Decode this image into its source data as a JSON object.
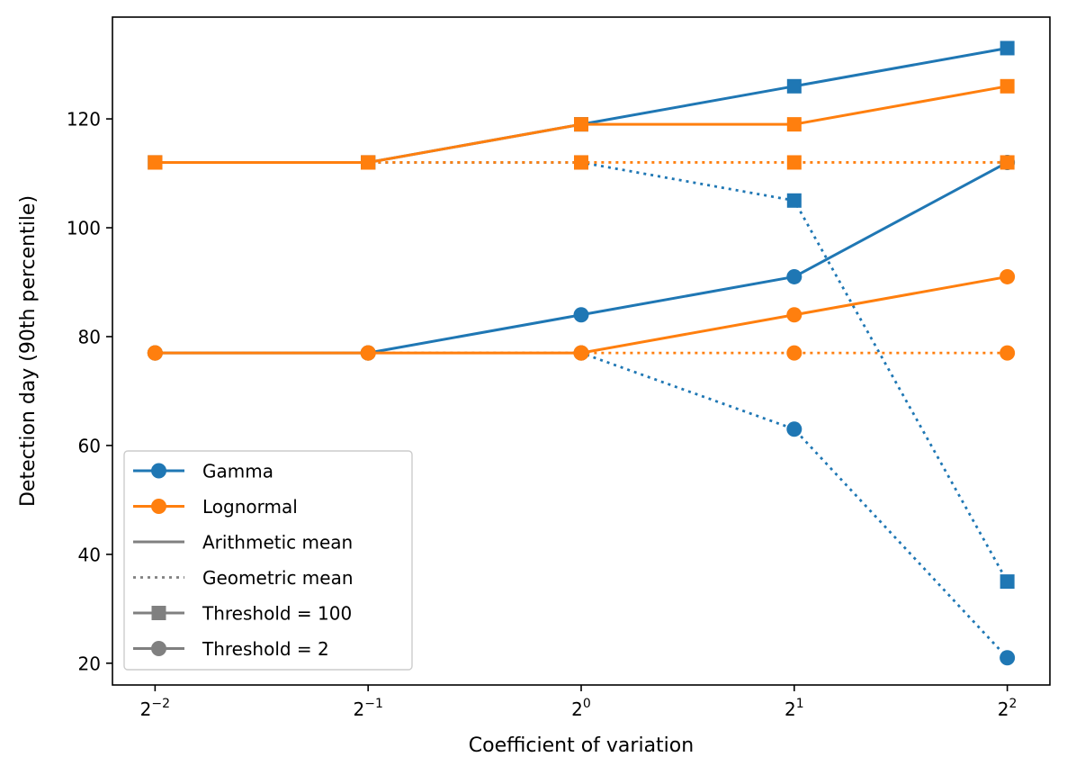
{
  "chart_data": {
    "type": "line",
    "title": "",
    "xlabel": "Coefficient of variation",
    "ylabel": "Detection day (90th percentile)",
    "x": [
      -2,
      -1,
      0,
      1,
      2
    ],
    "xtick_labels": [
      {
        "base": "2",
        "exp": "−2"
      },
      {
        "base": "2",
        "exp": "−1"
      },
      {
        "base": "2",
        "exp": "0"
      },
      {
        "base": "2",
        "exp": "1"
      },
      {
        "base": "2",
        "exp": "2"
      }
    ],
    "xlim": [
      -2.2,
      2.2
    ],
    "ylim": [
      16,
      138.7
    ],
    "yticks": [
      20,
      40,
      60,
      80,
      100,
      120
    ],
    "grid": false,
    "legend_position": "lower-left",
    "colors": {
      "gamma": "#1f77b4",
      "lognormal": "#ff7f0e",
      "neutral": "#808080"
    },
    "series": [
      {
        "name": "Gamma, Arithmetic mean, Threshold = 100",
        "distribution": "gamma",
        "mean": "arithmetic",
        "threshold": 100,
        "color": "#1f77b4",
        "linestyle": "solid",
        "marker": "square",
        "values": [
          112,
          112,
          119,
          126,
          133
        ]
      },
      {
        "name": "Gamma, Geometric mean, Threshold = 100",
        "distribution": "gamma",
        "mean": "geometric",
        "threshold": 100,
        "color": "#1f77b4",
        "linestyle": "dotted",
        "marker": "square",
        "values": [
          112,
          112,
          112,
          105,
          35
        ]
      },
      {
        "name": "Gamma, Arithmetic mean, Threshold = 2",
        "distribution": "gamma",
        "mean": "arithmetic",
        "threshold": 2,
        "color": "#1f77b4",
        "linestyle": "solid",
        "marker": "circle",
        "values": [
          77,
          77,
          84,
          91,
          112
        ]
      },
      {
        "name": "Gamma, Geometric mean, Threshold = 2",
        "distribution": "gamma",
        "mean": "geometric",
        "threshold": 2,
        "color": "#1f77b4",
        "linestyle": "dotted",
        "marker": "circle",
        "values": [
          77,
          77,
          77,
          63,
          21
        ]
      },
      {
        "name": "Lognormal, Arithmetic mean, Threshold = 100",
        "distribution": "lognormal",
        "mean": "arithmetic",
        "threshold": 100,
        "color": "#ff7f0e",
        "linestyle": "solid",
        "marker": "square",
        "values": [
          112,
          112,
          119,
          119,
          126
        ]
      },
      {
        "name": "Lognormal, Geometric mean, Threshold = 100",
        "distribution": "lognormal",
        "mean": "geometric",
        "threshold": 100,
        "color": "#ff7f0e",
        "linestyle": "dotted",
        "marker": "square",
        "values": [
          112,
          112,
          112,
          112,
          112
        ]
      },
      {
        "name": "Lognormal, Arithmetic mean, Threshold = 2",
        "distribution": "lognormal",
        "mean": "arithmetic",
        "threshold": 2,
        "color": "#ff7f0e",
        "linestyle": "solid",
        "marker": "circle",
        "values": [
          77,
          77,
          77,
          84,
          91
        ]
      },
      {
        "name": "Lognormal, Geometric mean, Threshold = 2",
        "distribution": "lognormal",
        "mean": "geometric",
        "threshold": 2,
        "color": "#ff7f0e",
        "linestyle": "dotted",
        "marker": "circle",
        "values": [
          77,
          77,
          77,
          77,
          77
        ]
      }
    ],
    "legend": [
      {
        "label": "Gamma",
        "color": "#1f77b4",
        "linestyle": "solid",
        "marker": "circle"
      },
      {
        "label": "Lognormal",
        "color": "#ff7f0e",
        "linestyle": "solid",
        "marker": "circle"
      },
      {
        "label": "Arithmetic mean",
        "color": "#808080",
        "linestyle": "solid",
        "marker": "none"
      },
      {
        "label": "Geometric mean",
        "color": "#808080",
        "linestyle": "dotted",
        "marker": "none"
      },
      {
        "label": "Threshold = 100",
        "color": "#808080",
        "linestyle": "solid",
        "marker": "square"
      },
      {
        "label": "Threshold = 2",
        "color": "#808080",
        "linestyle": "solid",
        "marker": "circle"
      }
    ]
  }
}
